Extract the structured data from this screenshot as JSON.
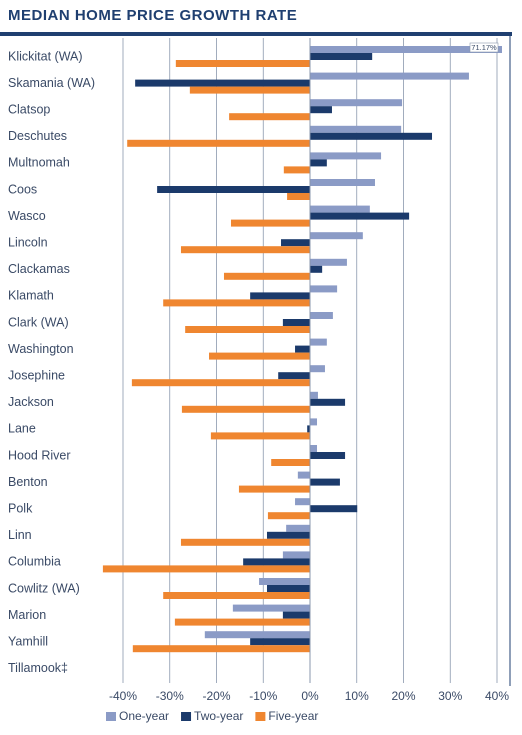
{
  "chart_data": {
    "type": "hbar",
    "title": "MEDIAN HOME PRICE GROWTH RATE",
    "categories": [
      "Klickitat (WA)",
      "Skamania (WA)",
      "Clatsop",
      "Deschutes",
      "Multnomah",
      "Coos",
      "Wasco",
      "Lincoln",
      "Clackamas",
      "Klamath",
      "Clark (WA)",
      "Washington",
      "Josephine",
      "Jackson",
      "Lane",
      "Hood River",
      "Benton",
      "Polk",
      "Linn",
      "Columbia",
      "Cowlitz (WA)",
      "Marion",
      "Yamhill",
      "Tillamook‡"
    ],
    "series": [
      {
        "name": "One-year",
        "color": "#8b9bc6",
        "values": [
          71.17,
          34,
          19.7,
          19.5,
          15.2,
          13.9,
          12.8,
          11.3,
          7.9,
          5.8,
          4.9,
          3.6,
          3.2,
          1.7,
          1.5,
          1.5,
          -2.6,
          -3.2,
          -5.1,
          -5.8,
          -10.9,
          -16.5,
          -22.5,
          null
        ],
        "value_labels": [
          "71.17%",
          null,
          null,
          null,
          null,
          null,
          null,
          null,
          null,
          null,
          null,
          null,
          null,
          null,
          null,
          null,
          null,
          null,
          null,
          null,
          null,
          null,
          null,
          null
        ]
      },
      {
        "name": "Two-year",
        "color": "#1b3a6b",
        "values": [
          13.3,
          -37.4,
          4.7,
          26.1,
          3.6,
          -32.7,
          21.2,
          -6.2,
          2.6,
          -12.8,
          -5.8,
          -3.2,
          -6.8,
          7.5,
          -0.6,
          7.5,
          6.4,
          10.1,
          -9.2,
          -14.3,
          -9.2,
          -5.8,
          -12.8,
          null
        ]
      },
      {
        "name": "Five-year",
        "color": "#ef8630",
        "values": [
          -28.7,
          -25.7,
          -17.3,
          -39.1,
          -5.6,
          -4.9,
          -16.9,
          -27.6,
          -18.4,
          -31.4,
          -26.7,
          -21.6,
          -38.1,
          -27.4,
          -21.2,
          -8.3,
          -15.2,
          -9.0,
          -27.6,
          -44.3,
          -31.4,
          -28.9,
          -37.9,
          null
        ]
      }
    ],
    "xlim": [
      -45,
      40
    ],
    "xticks": [
      {
        "value": -40,
        "label": "-40%"
      },
      {
        "value": -30,
        "label": "-30%"
      },
      {
        "value": -20,
        "label": "-20%"
      },
      {
        "value": -10,
        "label": "-10%"
      },
      {
        "value": 0,
        "label": "0%"
      },
      {
        "value": 10,
        "label": "10%"
      },
      {
        "value": 20,
        "label": "20%"
      },
      {
        "value": 30,
        "label": "30%"
      },
      {
        "value": 40,
        "label": "40%"
      }
    ],
    "grid": true
  }
}
